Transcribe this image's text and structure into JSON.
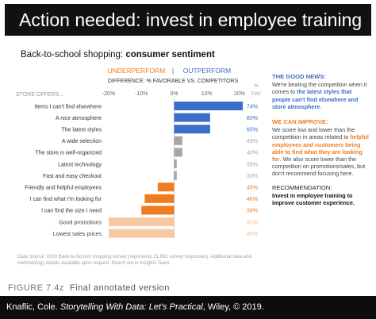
{
  "header": {
    "title": "Action needed: invest in employee training"
  },
  "chart_title": {
    "prefix": "Back-to-school shopping: ",
    "bold": "consumer sentiment"
  },
  "chart_data": {
    "type": "bar",
    "orientation": "horizontal",
    "row_header": "STORE OFFERS...",
    "underperform_label": "UNDERPERFORM",
    "divider": "|",
    "outperform_label": "OUTPERFORM",
    "axis_title": "DIFFERENCE: % FAVORABLE VS. COMPETITORS",
    "fav_header": [
      "%",
      "FAV"
    ],
    "xlim": [
      -20,
      20
    ],
    "ticks": [
      -20,
      -10,
      0,
      10,
      20
    ],
    "tick_labels": [
      "-20%",
      "-10%",
      "0%",
      "10%",
      "20%"
    ],
    "categories": [
      "Items I can't find elsewhere",
      "A nice atmosphere",
      "The latest styles",
      "A wide selection",
      "The store is well-organized",
      "Latest technology",
      "Fast and easy checkout",
      "Friendly and helpful employees",
      "I can find what I'm looking for",
      "I can find the size I need",
      "Good promotions",
      "Lowest sales prices"
    ],
    "values": [
      21,
      11,
      11,
      2.5,
      2.5,
      0.8,
      0.8,
      -5,
      -9,
      -10,
      -20,
      -20
    ],
    "fav": [
      "74%",
      "80%",
      "65%",
      "49%",
      "40%",
      "35%",
      "33%",
      "45%",
      "46%",
      "39%",
      "45%",
      "40%"
    ],
    "groups": [
      "out",
      "out",
      "out",
      "neutral",
      "neutral",
      "neutral",
      "neutral",
      "under",
      "under",
      "under",
      "faded",
      "faded"
    ],
    "colors": {
      "out": "#3b6ec9",
      "under": "#f07c1f",
      "neutral": "#a6a6a6",
      "faded": "#f7c9a3",
      "neutral_text": "#a6a6a6",
      "faded_text": "#f5b88a"
    }
  },
  "notes": {
    "good_header": "THE GOOD NEWS:",
    "good_1": "We're beating the competition when it comes to ",
    "good_2": "the latest styles that people can't find elsewhere and store atmosphere",
    "good_3": ".",
    "improve_header": "WE CAN IMPROVE:",
    "improve_1": "We score low and lower than the competition in areas related to ",
    "improve_2": "helpful employees and customers being able to find what they are looking for",
    "improve_3": ". We also score lower than the competition on promotions/sales, but don't recommend focusing here.",
    "rec_header": "RECOMMENDATION:",
    "rec_body": "Invest in employee training to improve customer experience."
  },
  "source": "Data Source: 2019 Back-to-School shopping survey (represents 21,862 survey responses). Additional data and methodology details available upon request. Reach out to Insights Team.",
  "figure": {
    "label": "FIGURE 7.4z",
    "caption": "Final annotated version"
  },
  "footer": {
    "author": "Knaflic, Cole. ",
    "book": "Storytelling With Data: Let's Practical",
    "rest": ", Wiley, © 2019."
  }
}
